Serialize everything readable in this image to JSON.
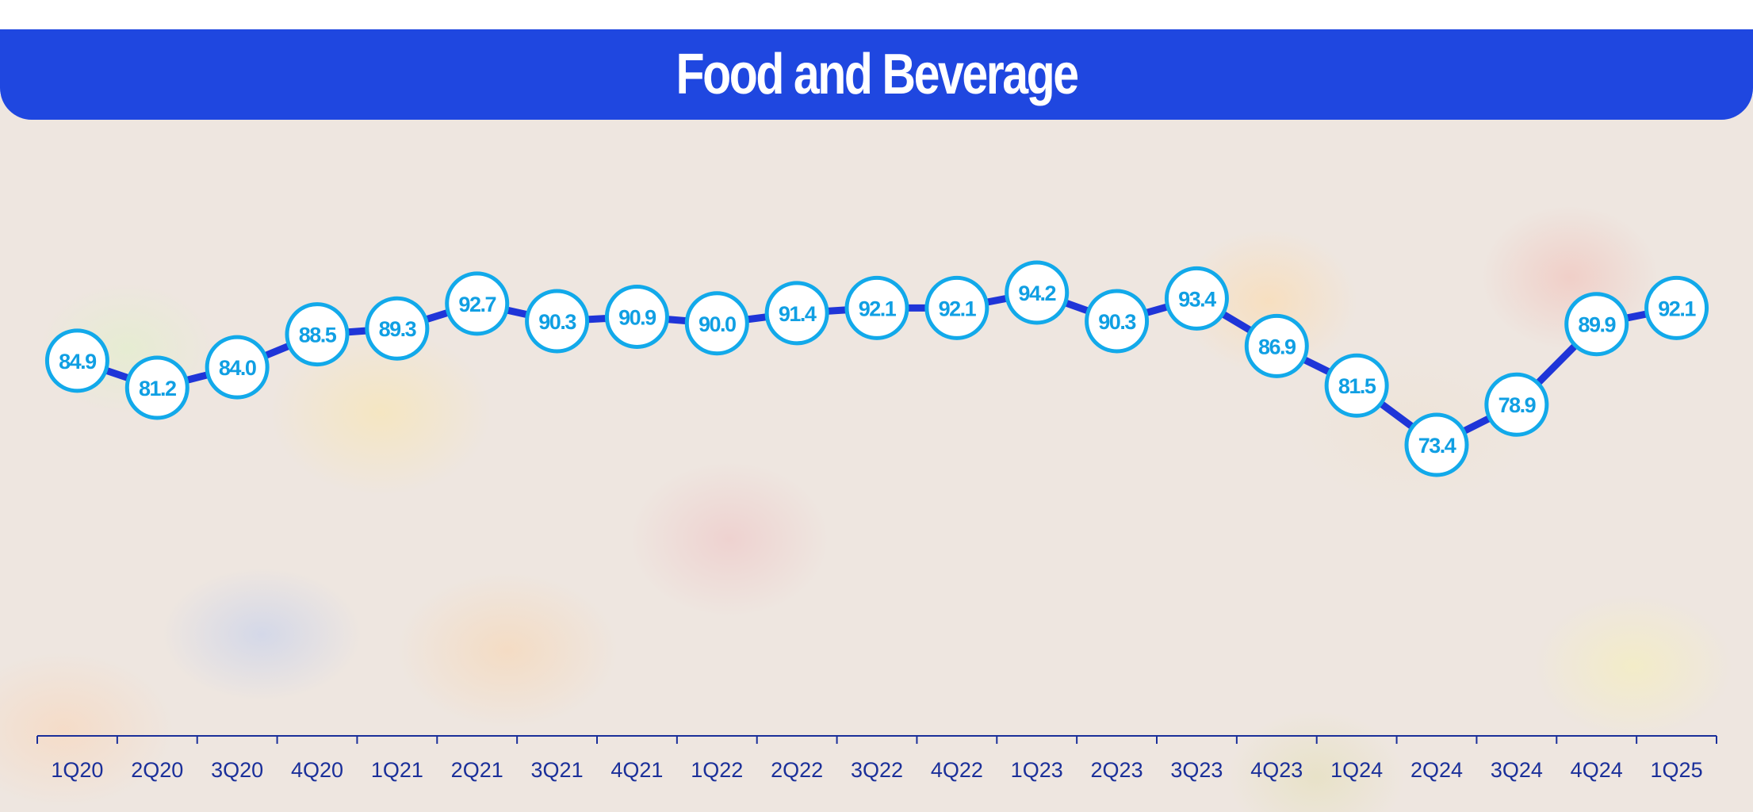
{
  "chart_data": {
    "type": "line",
    "title": "Food and Beverage",
    "categories": [
      "1Q20",
      "2Q20",
      "3Q20",
      "4Q20",
      "1Q21",
      "2Q21",
      "3Q21",
      "4Q21",
      "1Q22",
      "2Q22",
      "3Q22",
      "4Q22",
      "1Q23",
      "2Q23",
      "3Q23",
      "4Q23",
      "1Q24",
      "2Q24",
      "3Q24",
      "4Q24",
      "1Q25"
    ],
    "values": [
      84.9,
      81.2,
      84.0,
      88.5,
      89.3,
      92.7,
      90.3,
      90.9,
      90.0,
      91.4,
      92.1,
      92.1,
      94.2,
      90.3,
      93.4,
      86.9,
      81.5,
      73.4,
      78.9,
      89.9,
      92.1
    ],
    "value_labels": [
      "84.9",
      "81.2",
      "84.0",
      "88.5",
      "89.3",
      "92.7",
      "90.3",
      "90.9",
      "90.0",
      "91.4",
      "92.1",
      "92.1",
      "94.2",
      "90.3",
      "93.4",
      "86.9",
      "81.5",
      "73.4",
      "78.9",
      "89.9",
      "92.1"
    ],
    "xlabel": "",
    "ylabel": "",
    "ylim": [
      70,
      100
    ],
    "grid": false,
    "colors": {
      "line": "#1f35d8",
      "marker_stroke": "#12a9ea",
      "marker_fill": "#ffffff",
      "header": "#1f47e0",
      "axis": "#1a2f9a"
    }
  }
}
